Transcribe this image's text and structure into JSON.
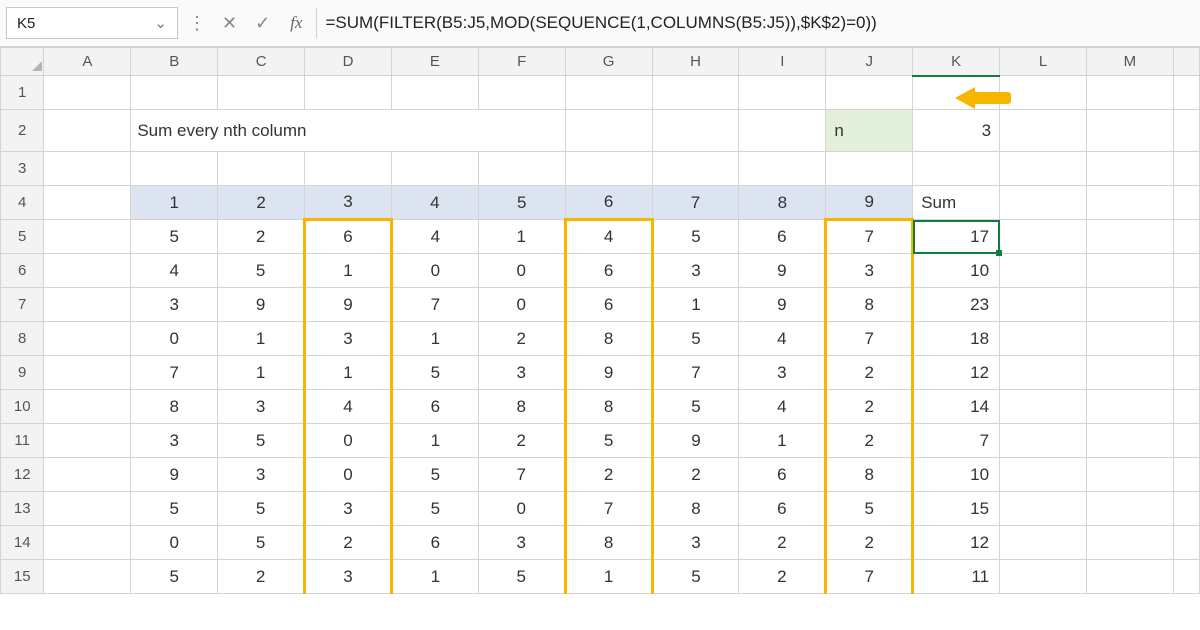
{
  "selection": {
    "name_box": "K5"
  },
  "formula": "=SUM(FILTER(B5:J5,MOD(SEQUENCE(1,COLUMNS(B5:J5)),$K$2)=0))",
  "title": "Sum every nth column",
  "n_label": "n",
  "n_value": "3",
  "colors": {
    "accent_green": "#107c41",
    "highlight_orange": "#f7b500",
    "header_blue_fill": "#dbe4f0",
    "n_fill": "#e2efda"
  },
  "col_letters": [
    "A",
    "B",
    "C",
    "D",
    "E",
    "F",
    "G",
    "H",
    "I",
    "J",
    "K",
    "L",
    "M"
  ],
  "row_numbers": [
    "1",
    "2",
    "3",
    "4",
    "5",
    "6",
    "7",
    "8",
    "9",
    "10",
    "11",
    "12",
    "13",
    "14",
    "15"
  ],
  "data_header": {
    "cols": [
      "1",
      "2",
      "3",
      "4",
      "5",
      "6",
      "7",
      "8",
      "9"
    ],
    "sum_label": "Sum"
  },
  "rows": [
    {
      "cells": [
        "5",
        "2",
        "6",
        "4",
        "1",
        "4",
        "5",
        "6",
        "7"
      ],
      "sum": "17"
    },
    {
      "cells": [
        "4",
        "5",
        "1",
        "0",
        "0",
        "6",
        "3",
        "9",
        "3"
      ],
      "sum": "10"
    },
    {
      "cells": [
        "3",
        "9",
        "9",
        "7",
        "0",
        "6",
        "1",
        "9",
        "8"
      ],
      "sum": "23"
    },
    {
      "cells": [
        "0",
        "1",
        "3",
        "1",
        "2",
        "8",
        "5",
        "4",
        "7"
      ],
      "sum": "18"
    },
    {
      "cells": [
        "7",
        "1",
        "1",
        "5",
        "3",
        "9",
        "7",
        "3",
        "2"
      ],
      "sum": "12"
    },
    {
      "cells": [
        "8",
        "3",
        "4",
        "6",
        "8",
        "8",
        "5",
        "4",
        "2"
      ],
      "sum": "14"
    },
    {
      "cells": [
        "3",
        "5",
        "0",
        "1",
        "2",
        "5",
        "9",
        "1",
        "2"
      ],
      "sum": "7"
    },
    {
      "cells": [
        "9",
        "3",
        "0",
        "5",
        "7",
        "2",
        "2",
        "6",
        "8"
      ],
      "sum": "10"
    },
    {
      "cells": [
        "5",
        "5",
        "3",
        "5",
        "0",
        "7",
        "8",
        "6",
        "5"
      ],
      "sum": "15"
    },
    {
      "cells": [
        "0",
        "5",
        "2",
        "6",
        "3",
        "8",
        "3",
        "2",
        "2"
      ],
      "sum": "12"
    },
    {
      "cells": [
        "5",
        "2",
        "3",
        "1",
        "5",
        "1",
        "5",
        "2",
        "7"
      ],
      "sum": "11"
    }
  ],
  "highlight_data_cols": [
    2,
    5,
    8
  ],
  "selected_cell": {
    "row_index": 0,
    "col": "K"
  }
}
